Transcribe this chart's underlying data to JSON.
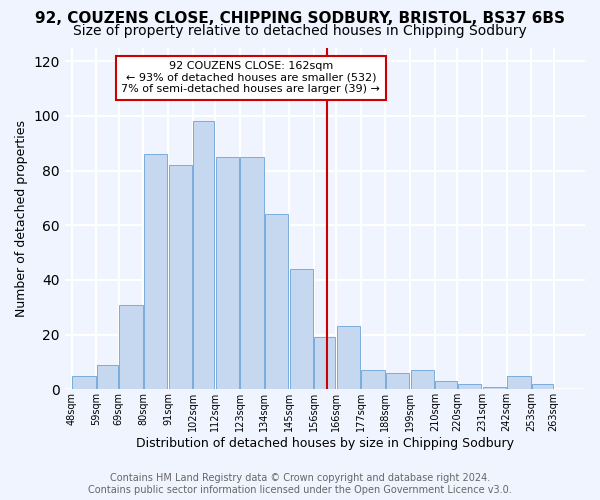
{
  "title1": "92, COUZENS CLOSE, CHIPPING SODBURY, BRISTOL, BS37 6BS",
  "title2": "Size of property relative to detached houses in Chipping Sodbury",
  "xlabel": "Distribution of detached houses by size in Chipping Sodbury",
  "ylabel": "Number of detached properties",
  "bar_values": [
    5,
    9,
    31,
    86,
    82,
    98,
    85,
    85,
    64,
    44,
    19,
    23,
    7,
    6,
    7,
    3,
    2,
    1,
    5,
    2,
    0
  ],
  "bin_edges": [
    48,
    59,
    69,
    80,
    91,
    102,
    112,
    123,
    134,
    145,
    156,
    166,
    177,
    188,
    199,
    210,
    220,
    231,
    242,
    253,
    263,
    274
  ],
  "tick_labels": [
    "48sqm",
    "59sqm",
    "69sqm",
    "80sqm",
    "91sqm",
    "102sqm",
    "112sqm",
    "123sqm",
    "134sqm",
    "145sqm",
    "156sqm",
    "166sqm",
    "177sqm",
    "188sqm",
    "199sqm",
    "210sqm",
    "220sqm",
    "231sqm",
    "242sqm",
    "253sqm",
    "263sqm"
  ],
  "bar_color": "#c5d8f0",
  "bar_edge_color": "#7aaddb",
  "vline_x": 162,
  "ylim": [
    0,
    125
  ],
  "yticks": [
    0,
    20,
    40,
    60,
    80,
    100,
    120
  ],
  "annotation_title": "92 COUZENS CLOSE: 162sqm",
  "annotation_line1": "← 93% of detached houses are smaller (532)",
  "annotation_line2": "7% of semi-detached houses are larger (39) →",
  "annotation_box_color": "#ffffff",
  "annotation_box_edge_color": "#cc0000",
  "vline_color": "#cc0000",
  "footer1": "Contains HM Land Registry data © Crown copyright and database right 2024.",
  "footer2": "Contains public sector information licensed under the Open Government Licence v3.0.",
  "bg_color": "#f0f4ff",
  "grid_color": "#ffffff",
  "title1_fontsize": 11,
  "title2_fontsize": 10,
  "xlabel_fontsize": 9,
  "ylabel_fontsize": 9,
  "footer_fontsize": 7
}
